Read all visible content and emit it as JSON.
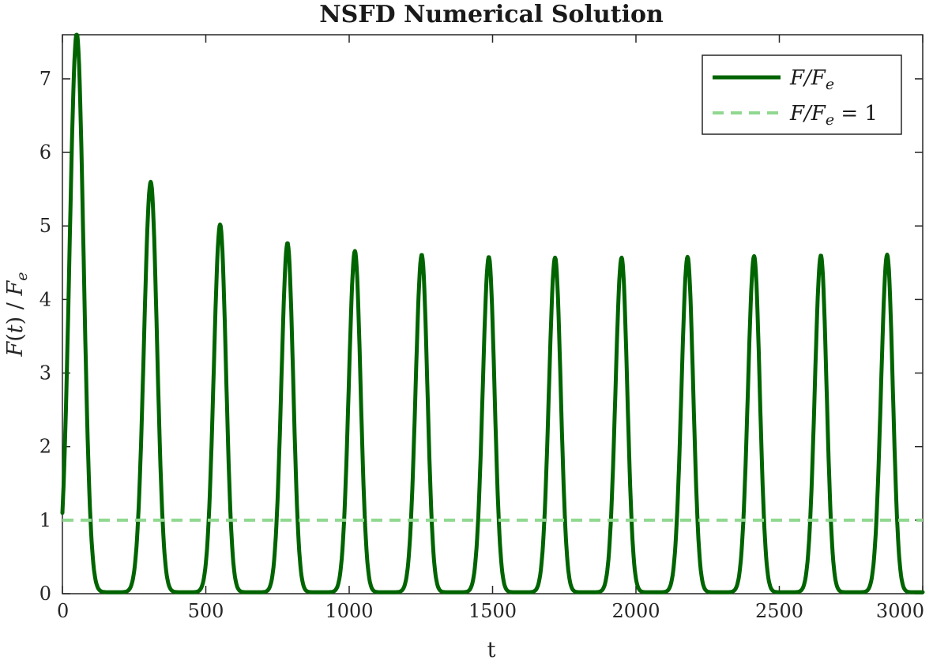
{
  "chart_data": {
    "type": "line",
    "title": "NSFD Numerical Solution",
    "xlabel": "t",
    "ylabel": "F(t) / F_e",
    "ylabel_parts": {
      "f": "F",
      "paren_open": "(",
      "t": "t",
      "paren_close": ")",
      "slash": " / ",
      "fe_main": "F",
      "fe_sub": "e"
    },
    "xlim": [
      0,
      3000
    ],
    "ylim": [
      0,
      7.6
    ],
    "xticks": [
      "0",
      "500",
      "1000",
      "1500",
      "2000",
      "2500",
      "3000"
    ],
    "yticks": [
      "0",
      "1",
      "2",
      "3",
      "4",
      "5",
      "6",
      "7"
    ],
    "grid": false,
    "legend_position": "top-right",
    "series": [
      {
        "name": "F/F_e",
        "legend_parts": {
          "main": "F/F",
          "sub": "e"
        },
        "style": "solid",
        "color": "#006400",
        "baseline": 0.02,
        "peaks": [
          {
            "t": 50,
            "value": 7.62,
            "rise": 32,
            "fall": 30
          },
          {
            "t": 308,
            "value": 5.6,
            "rise": 30,
            "fall": 28
          },
          {
            "t": 550,
            "value": 5.02,
            "rise": 28,
            "fall": 26
          },
          {
            "t": 785,
            "value": 4.77,
            "rise": 27,
            "fall": 25
          },
          {
            "t": 1020,
            "value": 4.66,
            "rise": 27,
            "fall": 25
          },
          {
            "t": 1253,
            "value": 4.61,
            "rise": 27,
            "fall": 25
          },
          {
            "t": 1487,
            "value": 4.58,
            "rise": 27,
            "fall": 25
          },
          {
            "t": 1718,
            "value": 4.57,
            "rise": 27,
            "fall": 25
          },
          {
            "t": 1950,
            "value": 4.57,
            "rise": 27,
            "fall": 25
          },
          {
            "t": 2180,
            "value": 4.58,
            "rise": 27,
            "fall": 25
          },
          {
            "t": 2412,
            "value": 4.59,
            "rise": 27,
            "fall": 25
          },
          {
            "t": 2645,
            "value": 4.6,
            "rise": 27,
            "fall": 25
          },
          {
            "t": 2876,
            "value": 4.61,
            "rise": 27,
            "fall": 25
          }
        ]
      },
      {
        "name": "F/F_e = 1",
        "legend_parts": {
          "main": "F/F",
          "sub": "e",
          "suffix": " = 1"
        },
        "style": "dashed",
        "color": "#90d890",
        "value": 1
      }
    ]
  }
}
